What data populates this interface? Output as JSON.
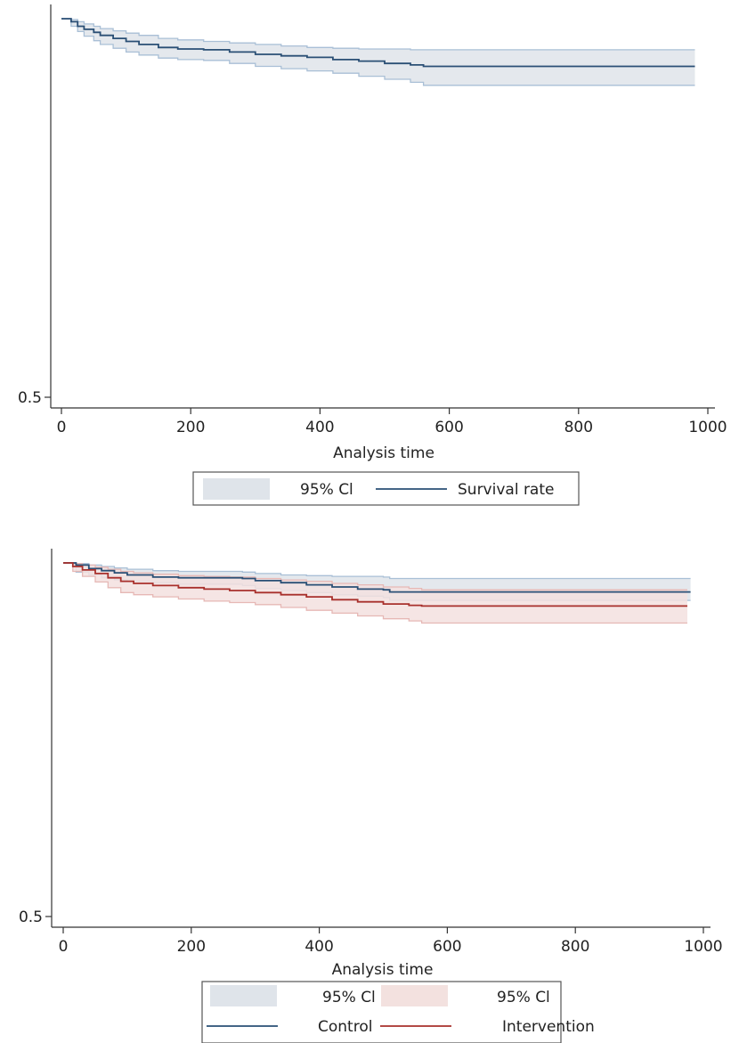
{
  "colors": {
    "control_line": "#2a4f75",
    "control_band_fill": "#dfe4ea",
    "control_band_edge": "#a9bfd6",
    "intervention_line": "#a8302c",
    "intervention_band_fill": "#f3e1df",
    "intervention_band_edge": "#e6b8b5",
    "axis": "#333333",
    "legend_border": "#555555"
  },
  "chart_data": [
    {
      "type": "line",
      "title": "",
      "xlabel": "Analysis time",
      "ylabel": "",
      "xlim": [
        0,
        1000
      ],
      "ylim": [
        0.5,
        1.0
      ],
      "x_ticks": [
        "0",
        "200",
        "400",
        "600",
        "800",
        "1000"
      ],
      "y_ticks": [
        "0.5"
      ],
      "grid": false,
      "legend": {
        "placement": "bottom",
        "entries": [
          {
            "label": "95% Cl",
            "kind": "band",
            "series": "survival"
          },
          {
            "label": "Survival rate",
            "kind": "line",
            "series": "survival"
          }
        ]
      },
      "series": [
        {
          "key": "survival",
          "name": "Survival rate",
          "x": [
            0,
            15,
            25,
            35,
            50,
            60,
            80,
            100,
            120,
            150,
            180,
            220,
            260,
            300,
            340,
            380,
            420,
            460,
            500,
            540,
            560,
            980
          ],
          "y": [
            1.0,
            0.996,
            0.99,
            0.986,
            0.982,
            0.978,
            0.974,
            0.97,
            0.966,
            0.962,
            0.96,
            0.959,
            0.956,
            0.953,
            0.951,
            0.949,
            0.946,
            0.944,
            0.941,
            0.939,
            0.937,
            0.937
          ],
          "ci_upper": [
            1.0,
            0.999,
            0.996,
            0.993,
            0.99,
            0.987,
            0.984,
            0.981,
            0.978,
            0.974,
            0.972,
            0.97,
            0.968,
            0.966,
            0.964,
            0.962,
            0.961,
            0.96,
            0.96,
            0.959,
            0.959,
            0.959
          ],
          "ci_lower": [
            1.0,
            0.99,
            0.983,
            0.977,
            0.971,
            0.966,
            0.961,
            0.956,
            0.952,
            0.948,
            0.946,
            0.945,
            0.941,
            0.937,
            0.934,
            0.931,
            0.928,
            0.924,
            0.92,
            0.916,
            0.912,
            0.912
          ]
        }
      ]
    },
    {
      "type": "line",
      "title": "",
      "xlabel": "Analysis time",
      "ylabel": "",
      "xlim": [
        0,
        1000
      ],
      "ylim": [
        0.5,
        1.0
      ],
      "x_ticks": [
        "0",
        "200",
        "400",
        "600",
        "800",
        "1000"
      ],
      "y_ticks": [
        "0.5"
      ],
      "grid": false,
      "legend": {
        "placement": "bottom",
        "entries": [
          {
            "label": "95% Cl",
            "kind": "band",
            "series": "control"
          },
          {
            "label": "95% Cl",
            "kind": "band",
            "series": "intervention"
          },
          {
            "label": "Control",
            "kind": "line",
            "series": "control"
          },
          {
            "label": "Intervention",
            "kind": "line",
            "series": "intervention"
          }
        ]
      },
      "series": [
        {
          "key": "control",
          "name": "Control",
          "x": [
            0,
            20,
            40,
            60,
            80,
            100,
            140,
            180,
            280,
            300,
            340,
            380,
            420,
            460,
            500,
            510,
            980
          ],
          "y": [
            1.0,
            0.997,
            0.992,
            0.989,
            0.986,
            0.983,
            0.98,
            0.979,
            0.978,
            0.975,
            0.972,
            0.969,
            0.966,
            0.963,
            0.962,
            0.959,
            0.959
          ],
          "ci_upper": [
            1.0,
            0.999,
            0.997,
            0.995,
            0.993,
            0.991,
            0.989,
            0.988,
            0.987,
            0.985,
            0.983,
            0.982,
            0.981,
            0.981,
            0.98,
            0.978,
            0.978
          ],
          "ci_lower": [
            1.0,
            0.987,
            0.983,
            0.979,
            0.976,
            0.974,
            0.972,
            0.97,
            0.968,
            0.964,
            0.961,
            0.958,
            0.955,
            0.953,
            0.951,
            0.947,
            0.947
          ]
        },
        {
          "key": "intervention",
          "name": "Intervention",
          "x": [
            0,
            15,
            30,
            50,
            70,
            90,
            110,
            140,
            180,
            220,
            260,
            300,
            340,
            380,
            420,
            460,
            500,
            540,
            560,
            975
          ],
          "y": [
            1.0,
            0.995,
            0.99,
            0.985,
            0.979,
            0.974,
            0.971,
            0.968,
            0.965,
            0.963,
            0.961,
            0.958,
            0.955,
            0.952,
            0.948,
            0.945,
            0.942,
            0.94,
            0.939,
            0.939
          ],
          "ci_upper": [
            1.0,
            0.999,
            0.997,
            0.994,
            0.991,
            0.988,
            0.986,
            0.984,
            0.982,
            0.981,
            0.98,
            0.978,
            0.976,
            0.974,
            0.971,
            0.969,
            0.966,
            0.964,
            0.962,
            0.962
          ],
          "ci_lower": [
            1.0,
            0.988,
            0.981,
            0.973,
            0.965,
            0.958,
            0.955,
            0.952,
            0.949,
            0.946,
            0.944,
            0.941,
            0.937,
            0.933,
            0.929,
            0.925,
            0.921,
            0.918,
            0.915,
            0.915
          ]
        }
      ]
    }
  ]
}
